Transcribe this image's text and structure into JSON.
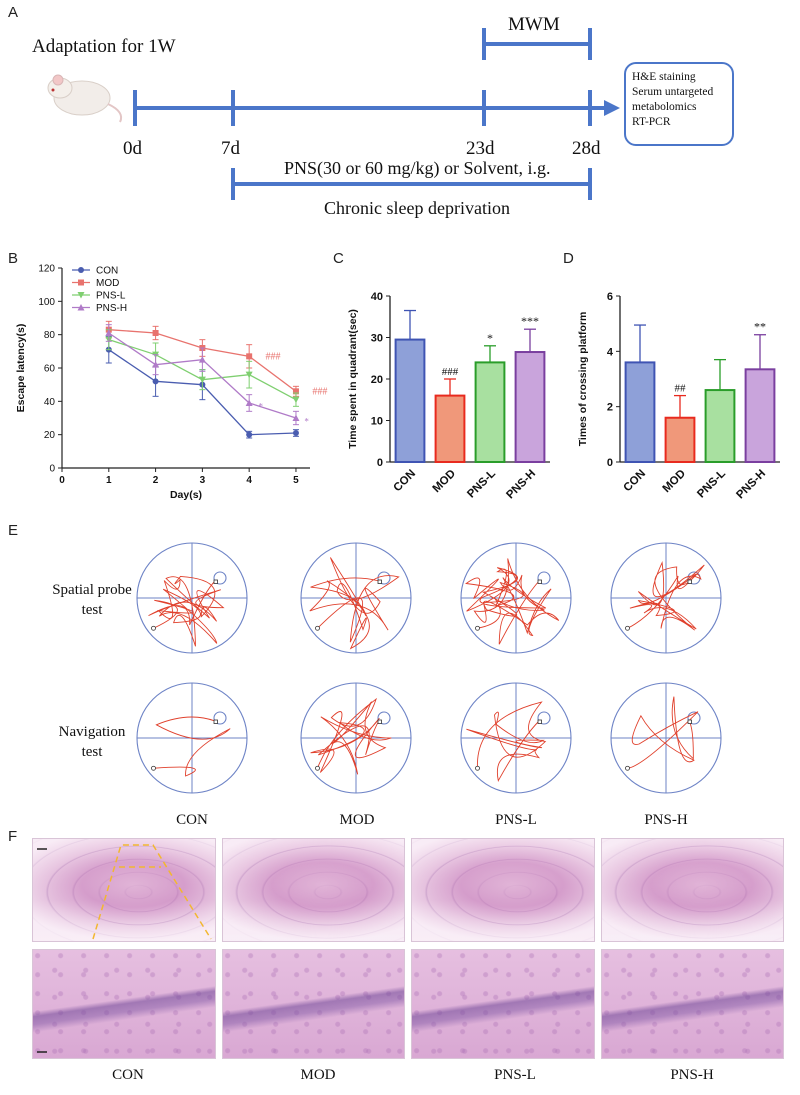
{
  "panels": {
    "A": "A",
    "B": "B",
    "C": "C",
    "D": "D",
    "E": "E",
    "F": "F"
  },
  "timeline": {
    "adaptation": "Adaptation for 1W",
    "mwm": "MWM",
    "days": [
      "0d",
      "7d",
      "23d",
      "28d"
    ],
    "treatment": "PNS(30 or 60 mg/kg) or Solvent, i.g.",
    "deprivation": "Chronic sleep deprivation",
    "outcomes": [
      "H&E staining",
      "Serum untargeted",
      "metabolomics",
      "RT-PCR"
    ],
    "colors": {
      "line": "#4b76c9"
    }
  },
  "groups": [
    "CON",
    "MOD",
    "PNS-L",
    "PNS-H"
  ],
  "group_colors": {
    "CON": "#4a5db0",
    "MOD": "#e8736e",
    "PNS-L": "#7fcf70",
    "PNS-H": "#b07bc8"
  },
  "chart_data": [
    {
      "type": "line",
      "id": "B",
      "xlabel": "Day(s)",
      "ylabel": "Escape latency(s)",
      "xlim": [
        0,
        5.3
      ],
      "ylim": [
        0,
        120
      ],
      "xticks": [
        "0",
        "1",
        "2",
        "3",
        "4",
        "5"
      ],
      "yticks": [
        "0",
        "20",
        "40",
        "60",
        "80",
        "100",
        "120"
      ],
      "x": [
        1,
        2,
        3,
        4,
        5
      ],
      "series": [
        {
          "name": "CON",
          "values": [
            71,
            52,
            50,
            20,
            21
          ],
          "err": [
            8,
            9,
            9,
            2,
            2
          ]
        },
        {
          "name": "MOD",
          "values": [
            83,
            81,
            72,
            67,
            46
          ],
          "err": [
            5,
            4,
            5,
            7,
            3
          ]
        },
        {
          "name": "PNS-L",
          "values": [
            77,
            68,
            53,
            56,
            41
          ],
          "err": [
            6,
            7,
            6,
            8,
            4
          ]
        },
        {
          "name": "PNS-H",
          "values": [
            81,
            62,
            65,
            39,
            30
          ],
          "err": [
            5,
            6,
            7,
            5,
            4
          ]
        }
      ],
      "annotations": [
        {
          "text": "###",
          "x": 4.35,
          "y": 67,
          "color": "#e8736e"
        },
        {
          "text": "###",
          "x": 5.35,
          "y": 46,
          "color": "#e8736e"
        },
        {
          "text": "*",
          "x": 4.2,
          "y": 37,
          "color": "#b07bc8"
        },
        {
          "text": "*",
          "x": 5.18,
          "y": 28,
          "color": "#b07bc8"
        }
      ]
    },
    {
      "type": "bar",
      "id": "C",
      "ylabel": "Time spent in quadrant(sec)",
      "ylim": [
        0,
        40
      ],
      "yticks": [
        "0",
        "10",
        "20",
        "30",
        "40"
      ],
      "categories": [
        "CON",
        "MOD",
        "PNS-L",
        "PNS-H"
      ],
      "values": [
        29.5,
        16,
        24,
        26.5
      ],
      "err": [
        7,
        4,
        4,
        5.5
      ],
      "marks": [
        "",
        "###",
        "*",
        "***"
      ]
    },
    {
      "type": "bar",
      "id": "D",
      "ylabel": "Times of crossing platform",
      "ylim": [
        0,
        6
      ],
      "yticks": [
        "0",
        "2",
        "4",
        "6"
      ],
      "categories": [
        "CON",
        "MOD",
        "PNS-L",
        "PNS-H"
      ],
      "values": [
        3.6,
        1.6,
        2.6,
        3.35
      ],
      "err": [
        1.35,
        0.8,
        1.1,
        1.25
      ],
      "marks": [
        "",
        "##",
        "",
        "**"
      ]
    }
  ],
  "probe": {
    "row1_label_a": "Spatial probe",
    "row1_label_b": "test",
    "row2_label_a": "Navigation",
    "row2_label_b": "test",
    "group_labels": [
      "CON",
      "MOD",
      "PNS-L",
      "PNS-H"
    ],
    "track_color": "#e0402c",
    "pool_color": "#6d83c6"
  },
  "histology": {
    "group_labels": [
      "CON",
      "MOD",
      "PNS-L",
      "PNS-H"
    ]
  }
}
